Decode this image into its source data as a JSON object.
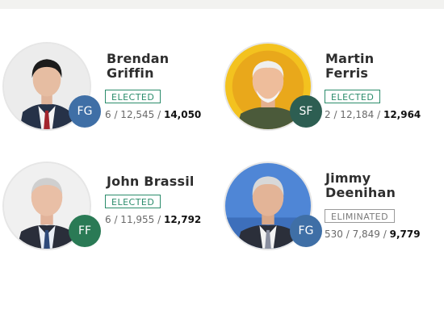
{
  "colors": {
    "fg": "#3f6fa6",
    "sf": "#2d5e52",
    "ff": "#2a7a55",
    "elected": "#2b8c6b",
    "eliminated": "#7a7a7a"
  },
  "candidates": [
    {
      "first": "Brendan",
      "last": "Griffin",
      "party": "FG",
      "status": "ELECTED",
      "count_partial": "6 / 12,545 / ",
      "count_final": "14,050"
    },
    {
      "first": "Martin",
      "last": "Ferris",
      "party": "SF",
      "status": "ELECTED",
      "count_partial": "2 / 12,184 / ",
      "count_final": "12,964"
    },
    {
      "full": "John Brassil",
      "party": "FF",
      "status": "ELECTED",
      "count_partial": "6 / 11,955 / ",
      "count_final": "12,792"
    },
    {
      "first": "Jimmy",
      "last": "Deenihan",
      "party": "FG",
      "status": "ELIMINATED",
      "count_partial": "530 / 7,849 / ",
      "count_final": "9,779"
    }
  ]
}
